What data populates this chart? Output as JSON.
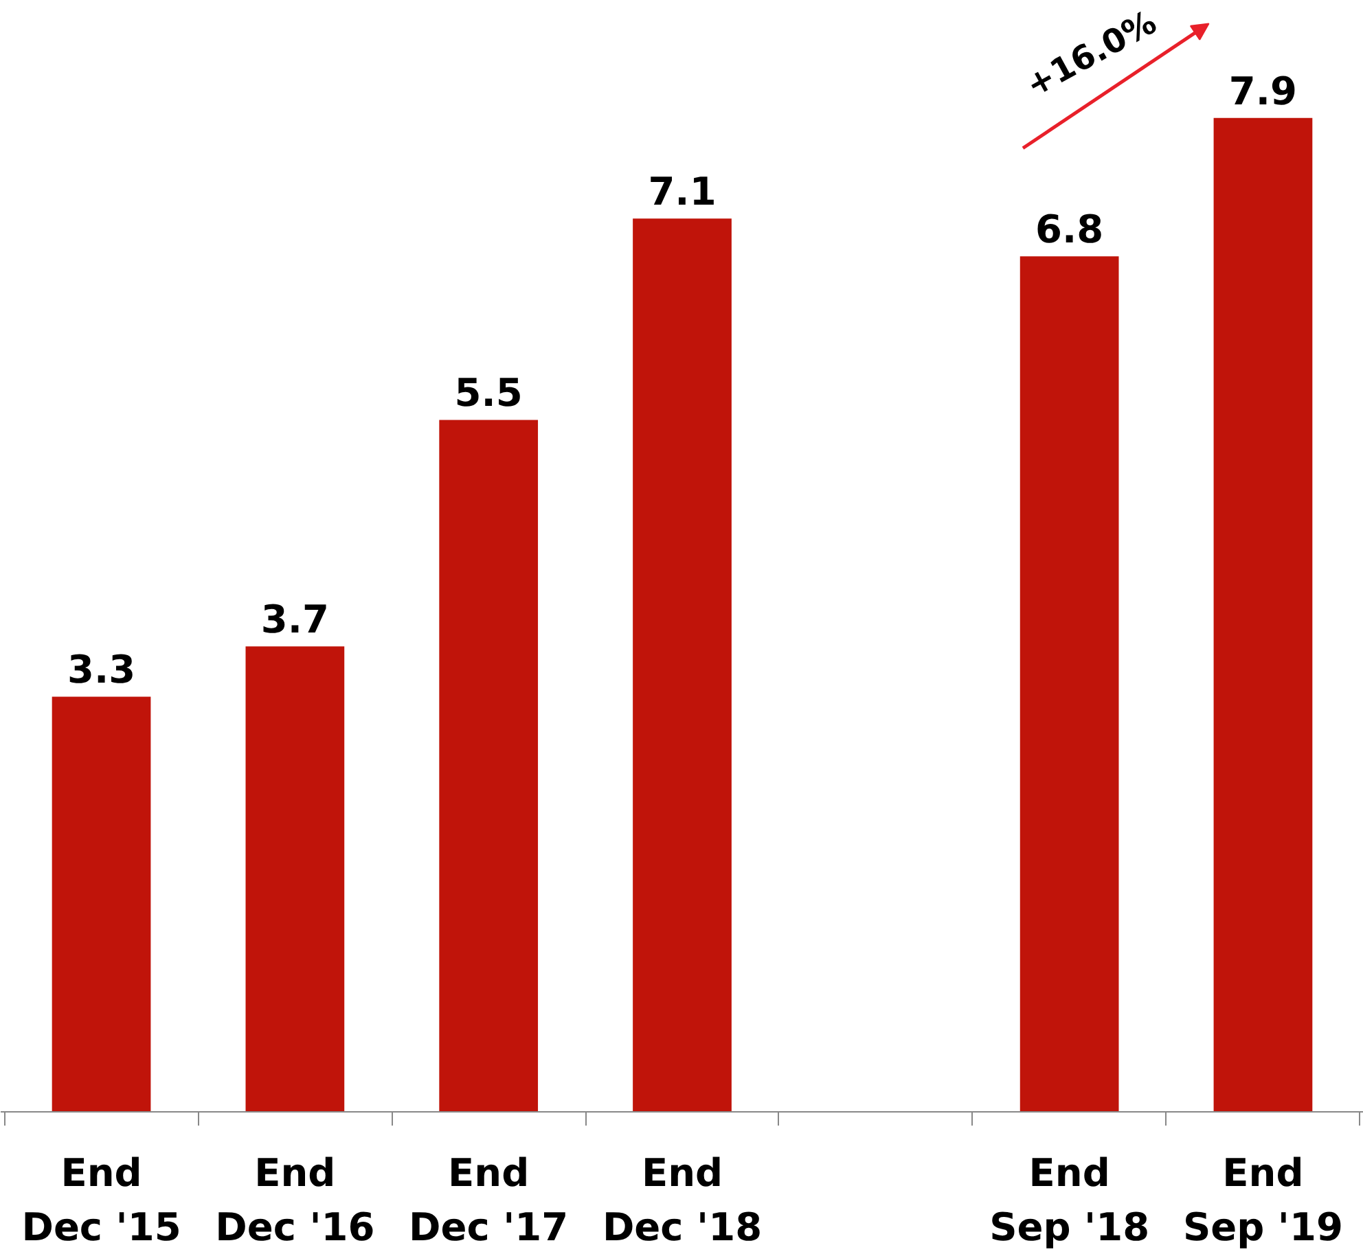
{
  "chart_data": {
    "type": "bar",
    "categories": [
      "End\nDec '15",
      "End\nDec '16",
      "End\nDec '17",
      "End\nDec '18",
      null,
      "End\nSep '18",
      "End\nSep '19"
    ],
    "values": [
      3.3,
      3.7,
      5.5,
      7.1,
      null,
      6.8,
      7.9
    ],
    "color": "#c0140a",
    "data_labels": true,
    "grid": false,
    "annotations": [
      "+16.0%"
    ]
  }
}
